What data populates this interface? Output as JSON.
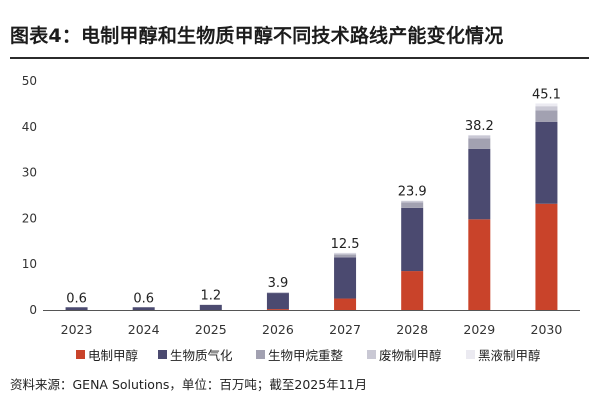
{
  "title": "图表4：电制甲醇和生物质甲醇不同技术路线产能变化情况",
  "source": "资料来源：GENA Solutions，单位：百万吨；截至2025年11月",
  "chart_data": {
    "type": "bar",
    "stacked": true,
    "categories": [
      "2023",
      "2024",
      "2025",
      "2026",
      "2027",
      "2028",
      "2029",
      "2030"
    ],
    "series": [
      {
        "name": "电制甲醇",
        "color": "#c9432a",
        "values": [
          0.0,
          0.0,
          0.0,
          0.2,
          2.5,
          8.5,
          19.8,
          23.2
        ]
      },
      {
        "name": "生物质气化",
        "color": "#4b4a70",
        "values": [
          0.6,
          0.6,
          1.1,
          3.5,
          9.0,
          13.8,
          15.4,
          17.9
        ]
      },
      {
        "name": "生物甲烷重整",
        "color": "#a2a1b1",
        "values": [
          0.0,
          0.0,
          0.0,
          0.0,
          0.6,
          1.2,
          2.3,
          2.5
        ]
      },
      {
        "name": "废物制甲醇",
        "color": "#c9c8d4",
        "values": [
          0.0,
          0.0,
          0.1,
          0.2,
          0.3,
          0.3,
          0.6,
          0.9
        ]
      },
      {
        "name": "黑液制甲醇",
        "color": "#ebeaf1",
        "values": [
          0.0,
          0.0,
          0.0,
          0.0,
          0.1,
          0.1,
          0.1,
          0.6
        ]
      }
    ],
    "totals": [
      "0.6",
      "0.6",
      "1.2",
      "3.9",
      "12.5",
      "23.9",
      "38.2",
      "45.1"
    ],
    "ylim": [
      0,
      50
    ],
    "yticks": [
      "0",
      "10",
      "20",
      "30",
      "40",
      "50"
    ],
    "grid": false,
    "legend_position": "bottom"
  }
}
